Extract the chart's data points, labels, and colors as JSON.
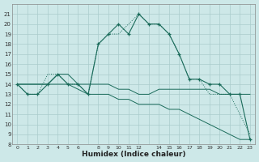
{
  "xlabel": "Humidex (Indice chaleur)",
  "bg_color": "#cde8e8",
  "grid_color": "#aacccc",
  "line_color": "#1a6b5a",
  "x": [
    0,
    1,
    2,
    3,
    4,
    5,
    6,
    7,
    8,
    9,
    10,
    11,
    12,
    13,
    14,
    15,
    16,
    17,
    18,
    19,
    20,
    21,
    22,
    23
  ],
  "main_curve": [
    14,
    13,
    13,
    14,
    15,
    14,
    14,
    13,
    18,
    19,
    20,
    19,
    21,
    20,
    20,
    19,
    17,
    14.5,
    14.5,
    14,
    14,
    13,
    13,
    8.5
  ],
  "curve2": [
    14,
    13,
    13,
    15,
    15,
    14,
    14,
    13,
    18,
    19,
    19,
    20,
    21,
    20,
    20,
    19,
    17,
    14.5,
    14.5,
    13,
    13,
    13,
    11,
    9
  ],
  "trend1": [
    14,
    14,
    14,
    14,
    15,
    15,
    14,
    14,
    14,
    14,
    13.5,
    13.5,
    13,
    13,
    13.5,
    13.5,
    13.5,
    13.5,
    13.5,
    13.5,
    13,
    13,
    13,
    13
  ],
  "trend2": [
    14,
    14,
    14,
    14,
    14,
    14,
    13.5,
    13,
    13,
    13,
    12.5,
    12.5,
    12,
    12,
    12,
    11.5,
    11.5,
    11,
    10.5,
    10,
    9.5,
    9,
    8.5,
    8.5
  ],
  "ylim": [
    8,
    22
  ],
  "xlim": [
    -0.5,
    23.5
  ],
  "yticks": [
    8,
    9,
    10,
    11,
    12,
    13,
    14,
    15,
    16,
    17,
    18,
    19,
    20,
    21
  ],
  "xtick_vals": [
    0,
    1,
    2,
    3,
    4,
    5,
    6,
    8,
    9,
    10,
    11,
    12,
    14,
    15,
    16,
    17,
    18,
    19,
    20,
    21,
    22,
    23
  ],
  "xtick_labels": [
    "0",
    "1",
    "2",
    "3",
    "4",
    "5",
    "6",
    "8",
    "9",
    "10",
    "11",
    "12",
    "14",
    "15",
    "16",
    "17",
    "18",
    "19",
    "20",
    "21",
    "22",
    "23"
  ]
}
